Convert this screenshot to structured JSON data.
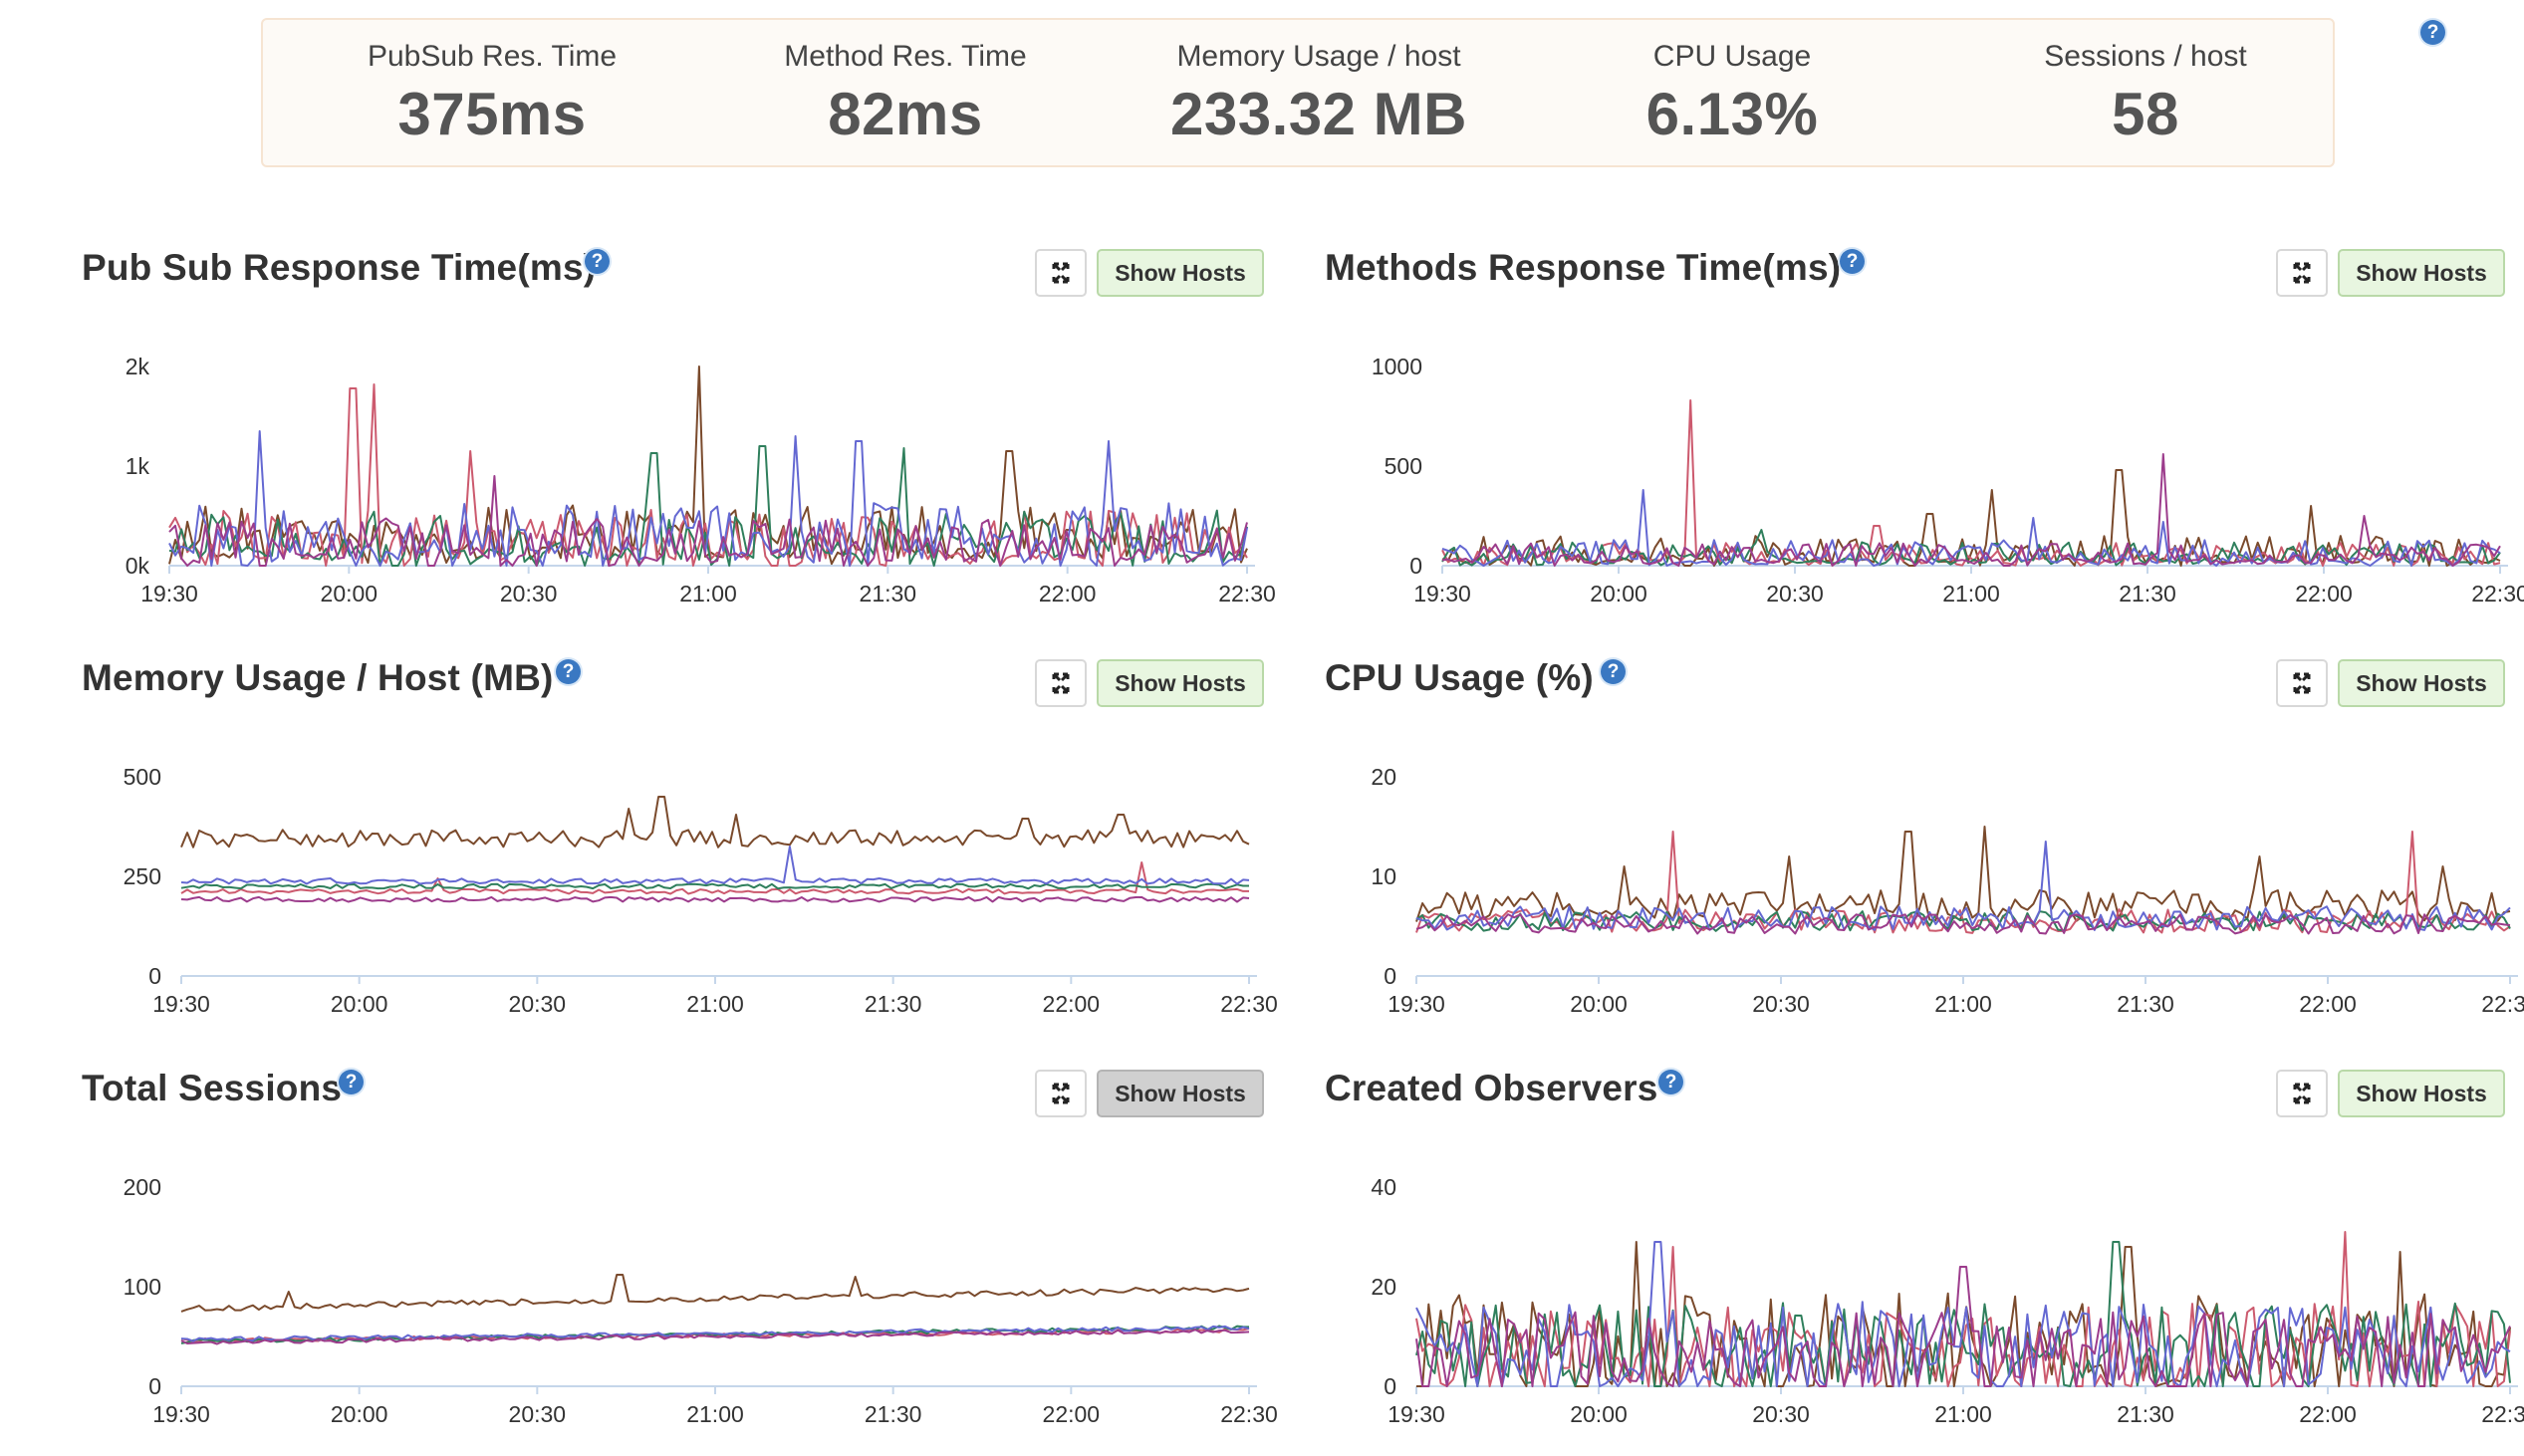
{
  "summary": {
    "stats": [
      {
        "label": "PubSub Res. Time",
        "value": "375ms"
      },
      {
        "label": "Method Res. Time",
        "value": "82ms"
      },
      {
        "label": "Memory Usage / host",
        "value": "233.32 MB"
      },
      {
        "label": "CPU Usage",
        "value": "6.13%"
      },
      {
        "label": "Sessions / host",
        "value": "58"
      }
    ],
    "help_icon": "?"
  },
  "common": {
    "help_icon": "?",
    "show_hosts_label": "Show Hosts"
  },
  "colors": {
    "series": [
      "#7a4a2c",
      "#cc5a6e",
      "#2f7f5c",
      "#6468d2",
      "#9c3c8c"
    ],
    "axis": "#c5d6ea"
  },
  "x_ticks": [
    "19:30",
    "20:00",
    "20:30",
    "21:00",
    "21:30",
    "22:00",
    "22:30"
  ],
  "panels": [
    {
      "title": "Pub Sub Response Time(ms)",
      "show_hosts_active": false,
      "chart_data": {
        "type": "line",
        "y_ticks": [
          "2k",
          "1k",
          "0k"
        ],
        "ylim": [
          0,
          2000
        ],
        "x_range": [
          "19:30",
          "22:30"
        ],
        "legend": "none",
        "series_profiles": [
          {
            "base": 310,
            "noise": 300,
            "spikes": [
              [
                0.49,
                2000
              ],
              [
                0.78,
                1150
              ]
            ]
          },
          {
            "base": 250,
            "noise": 320,
            "spikes": [
              [
                0.17,
                1780
              ],
              [
                0.19,
                1820
              ],
              [
                0.28,
                1150
              ]
            ]
          },
          {
            "base": 260,
            "noise": 300,
            "spikes": [
              [
                0.45,
                1130
              ],
              [
                0.55,
                1200
              ],
              [
                0.68,
                1180
              ]
            ]
          },
          {
            "base": 290,
            "noise": 340,
            "spikes": [
              [
                0.085,
                1350
              ],
              [
                0.58,
                1300
              ],
              [
                0.64,
                1250
              ],
              [
                0.87,
                1250
              ]
            ]
          },
          {
            "base": 220,
            "noise": 260,
            "spikes": [
              [
                0.3,
                900
              ]
            ]
          }
        ]
      }
    },
    {
      "title": "Methods Response Time(ms)",
      "show_hosts_active": false,
      "chart_data": {
        "type": "line",
        "y_ticks": [
          "1000",
          "500",
          "0"
        ],
        "ylim": [
          0,
          1000
        ],
        "x_range": [
          "19:30",
          "22:30"
        ],
        "legend": "none",
        "series_profiles": [
          {
            "base": 70,
            "noise": 80,
            "spikes": [
              [
                0.46,
                260
              ],
              [
                0.52,
                380
              ],
              [
                0.64,
                480
              ],
              [
                0.82,
                300
              ]
            ]
          },
          {
            "base": 55,
            "noise": 60,
            "spikes": [
              [
                0.235,
                830
              ],
              [
                0.41,
                200
              ]
            ]
          },
          {
            "base": 60,
            "noise": 60,
            "spikes": [
              [
                0.3,
                180
              ]
            ]
          },
          {
            "base": 60,
            "noise": 70,
            "spikes": [
              [
                0.19,
                380
              ],
              [
                0.56,
                240
              ],
              [
                0.68,
                220
              ]
            ]
          },
          {
            "base": 55,
            "noise": 60,
            "spikes": [
              [
                0.68,
                560
              ],
              [
                0.87,
                250
              ]
            ]
          }
        ]
      }
    },
    {
      "title": "Memory Usage / Host (MB)",
      "show_hosts_active": false,
      "chart_data": {
        "type": "line",
        "y_ticks": [
          "500",
          "250",
          "0"
        ],
        "ylim": [
          0,
          500
        ],
        "x_range": [
          "19:30",
          "22:30"
        ],
        "legend": "none",
        "series_profiles": [
          {
            "base": 345,
            "noise": 22,
            "spikes": [
              [
                0.45,
                450
              ],
              [
                0.42,
                420
              ],
              [
                0.52,
                405
              ],
              [
                0.79,
                395
              ],
              [
                0.88,
                405
              ]
            ]
          },
          {
            "base": 212,
            "noise": 6,
            "spikes": [
              [
                0.24,
                245
              ],
              [
                0.9,
                285
              ]
            ]
          },
          {
            "base": 225,
            "noise": 6,
            "spikes": []
          },
          {
            "base": 238,
            "noise": 7,
            "spikes": [
              [
                0.57,
                325
              ]
            ]
          },
          {
            "base": 192,
            "noise": 6,
            "spikes": []
          }
        ]
      }
    },
    {
      "title": "CPU Usage (%)",
      "show_hosts_active": false,
      "chart_data": {
        "type": "line",
        "y_ticks": [
          "20",
          "10",
          "0"
        ],
        "ylim": [
          0,
          20
        ],
        "x_range": [
          "19:30",
          "22:30"
        ],
        "legend": "none",
        "series_profiles": [
          {
            "base": 7,
            "noise": 1.6,
            "spikes": [
              [
                0.19,
                11
              ],
              [
                0.34,
                12
              ],
              [
                0.45,
                14.5
              ],
              [
                0.52,
                15
              ],
              [
                0.77,
                12
              ],
              [
                0.94,
                11
              ]
            ]
          },
          {
            "base": 5.5,
            "noise": 1.2,
            "spikes": [
              [
                0.235,
                14.5
              ],
              [
                0.91,
                14.5
              ]
            ]
          },
          {
            "base": 5.5,
            "noise": 1.0,
            "spikes": []
          },
          {
            "base": 5.8,
            "noise": 1.2,
            "spikes": [
              [
                0.575,
                13.5
              ]
            ]
          },
          {
            "base": 5.2,
            "noise": 1.0,
            "spikes": []
          }
        ]
      }
    },
    {
      "title": "Total Sessions",
      "show_hosts_active": true,
      "chart_data": {
        "type": "line",
        "y_ticks": [
          "200",
          "100",
          "0"
        ],
        "ylim": [
          0,
          200
        ],
        "x_range": [
          "19:30",
          "22:30"
        ],
        "legend": "none",
        "series_profiles": [
          {
            "base": 78,
            "trend": 20,
            "noise": 3,
            "spikes": [
              [
                0.1,
                95
              ],
              [
                0.41,
                112
              ],
              [
                0.63,
                110
              ]
            ]
          },
          {
            "base": 46,
            "trend": 10,
            "noise": 2,
            "spikes": []
          },
          {
            "base": 45,
            "trend": 14,
            "noise": 2,
            "spikes": []
          },
          {
            "base": 47,
            "trend": 12,
            "noise": 2,
            "spikes": []
          },
          {
            "base": 44,
            "trend": 12,
            "noise": 2,
            "spikes": []
          }
        ]
      }
    },
    {
      "title": "Created Observers",
      "show_hosts_active": false,
      "chart_data": {
        "type": "line",
        "y_ticks": [
          "40",
          "20",
          "0"
        ],
        "ylim": [
          0,
          40
        ],
        "x_range": [
          "19:30",
          "22:30"
        ],
        "legend": "none",
        "series_profiles": [
          {
            "base": 8,
            "noise": 11,
            "spikes": [
              [
                0.2,
                29
              ],
              [
                0.65,
                28
              ],
              [
                0.9,
                27
              ]
            ]
          },
          {
            "base": 7,
            "noise": 10,
            "spikes": [
              [
                0.235,
                28
              ],
              [
                0.85,
                31
              ]
            ]
          },
          {
            "base": 7,
            "noise": 10,
            "spikes": [
              [
                0.64,
                29
              ]
            ]
          },
          {
            "base": 7,
            "noise": 10,
            "spikes": [
              [
                0.22,
                29
              ]
            ]
          },
          {
            "base": 6,
            "noise": 9,
            "spikes": [
              [
                0.5,
                24
              ]
            ]
          }
        ]
      }
    }
  ]
}
